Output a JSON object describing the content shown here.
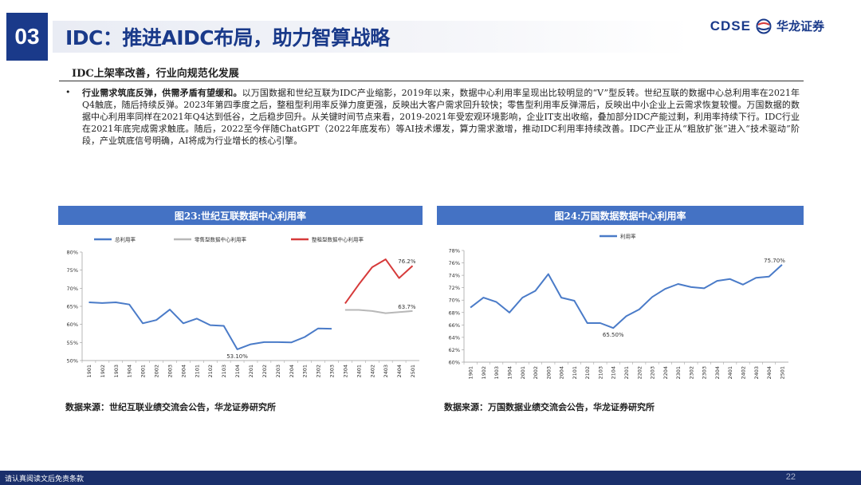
{
  "header": {
    "section_number": "03",
    "title": "IDC：推进AIDC布局，助力智算战略",
    "logo_en": "CDSE",
    "logo_cn": "华龙证券"
  },
  "subtitle": "IDC上架率改善，行业向规范化发展",
  "paragraph": {
    "bullet": "•",
    "lead": "行业需求筑底反弹，供需矛盾有望缓和。",
    "body": "以万国数据和世纪互联为IDC产业缩影，2019年以来，数据中心利用率呈现出比较明显的“V”型反转。世纪互联的数据中心总利用率在2021年Q4触底，随后持续反弹。2023年第四季度之后，整租型利用率反弹力度更强，反映出大客户需求回升较快；零售型利用率反弹滞后，反映出中小企业上云需求恢复较慢。万国数据的数据中心利用率同样在2021年Q4达到低谷，之后稳步回升。从关键时间节点来看，2019-2021年受宏观环境影响，企业IT支出收缩，叠加部分IDC产能过剩，利用率持续下行。IDC行业在2021年底完成需求触底。随后，2022至今伴随ChatGPT（2022年底发布）等AI技术爆发，算力需求激增，推动IDC利用率持续改善。IDC产业正从“粗放扩张”进入“技术驱动”阶段，产业筑底信号明确，AI将成为行业增长的核心引擎。"
  },
  "chart_left": {
    "heading": "图23:世纪互联数据中心利用率",
    "source": "数据来源：世纪互联业绩交流会公告，华龙证券研究所"
  },
  "chart_right": {
    "heading": "图24:万国数据数据中心利用率",
    "source": "数据来源：万国数据业绩交流会公告，华龙证券研究所"
  },
  "chart_data": [
    {
      "type": "line",
      "title": "图23:世纪互联数据中心利用率",
      "x": [
        "1901",
        "1902",
        "1903",
        "1904",
        "2001",
        "2002",
        "2003",
        "2004",
        "2101",
        "2102",
        "2103",
        "2104",
        "2201",
        "2202",
        "2203",
        "2204",
        "2301",
        "2302",
        "2303",
        "2304",
        "2401",
        "2402",
        "2403",
        "2404",
        "2501"
      ],
      "ylim": [
        50,
        80
      ],
      "yticks": [
        "50%",
        "55%",
        "60%",
        "65%",
        "70%",
        "75%",
        "80%"
      ],
      "legend_position": "top",
      "series": [
        {
          "name": "总利用率",
          "color": "#4a7bc8",
          "values": [
            66.1,
            65.9,
            66.1,
            65.5,
            60.3,
            61.2,
            64.1,
            60.3,
            61.6,
            59.8,
            59.6,
            53.1,
            54.5,
            55.1,
            55.1,
            55.0,
            56.5,
            58.9,
            58.8,
            null,
            null,
            null,
            null,
            null,
            null
          ]
        },
        {
          "name": "零售型数据中心利用率",
          "color": "#b8b8b8",
          "values": [
            null,
            null,
            null,
            null,
            null,
            null,
            null,
            null,
            null,
            null,
            null,
            null,
            null,
            null,
            null,
            null,
            null,
            null,
            null,
            64.0,
            64.0,
            63.7,
            63.1,
            63.4,
            63.7
          ]
        },
        {
          "name": "整租型数据中心利用率",
          "color": "#d63a3a",
          "values": [
            null,
            null,
            null,
            null,
            null,
            null,
            null,
            null,
            null,
            null,
            null,
            null,
            null,
            null,
            null,
            null,
            null,
            null,
            null,
            65.8,
            71.0,
            75.8,
            78.0,
            72.8,
            76.2
          ]
        }
      ],
      "annotations": [
        {
          "series": 0,
          "index": 11,
          "text": "53.10%"
        },
        {
          "series": 1,
          "index": 24,
          "text": "63.7%"
        },
        {
          "series": 2,
          "index": 24,
          "text": "76.2%"
        }
      ]
    },
    {
      "type": "line",
      "title": "图24:万国数据数据中心利用率",
      "x": [
        "1901",
        "1902",
        "1903",
        "1904",
        "2001",
        "2002",
        "2003",
        "2004",
        "2101",
        "2102",
        "2103",
        "2104",
        "2201",
        "2202",
        "2203",
        "2204",
        "2301",
        "2302",
        "2303",
        "2304",
        "2401",
        "2402",
        "2403",
        "2404",
        "2501"
      ],
      "ylim": [
        60,
        78
      ],
      "yticks": [
        "60%",
        "62%",
        "64%",
        "66%",
        "68%",
        "70%",
        "72%",
        "74%",
        "76%",
        "78%"
      ],
      "legend_position": "top",
      "series": [
        {
          "name": "利用率",
          "color": "#4a7bc8",
          "values": [
            68.8,
            70.4,
            69.7,
            68.0,
            70.4,
            71.5,
            74.2,
            70.4,
            69.9,
            66.3,
            66.3,
            65.5,
            67.4,
            68.5,
            70.5,
            71.8,
            72.6,
            72.1,
            71.9,
            73.1,
            73.4,
            72.5,
            73.6,
            73.8,
            75.7
          ]
        }
      ],
      "annotations": [
        {
          "series": 0,
          "index": 11,
          "text": "65.50%"
        },
        {
          "series": 0,
          "index": 24,
          "text": "75.70%"
        }
      ]
    }
  ],
  "footer": {
    "disclaimer": "请认真阅读文后免责条款",
    "page": "22"
  },
  "colors": {
    "brand": "#1a3a8a",
    "chart_header": "#4472c4",
    "footer": "#1a2f6b"
  }
}
